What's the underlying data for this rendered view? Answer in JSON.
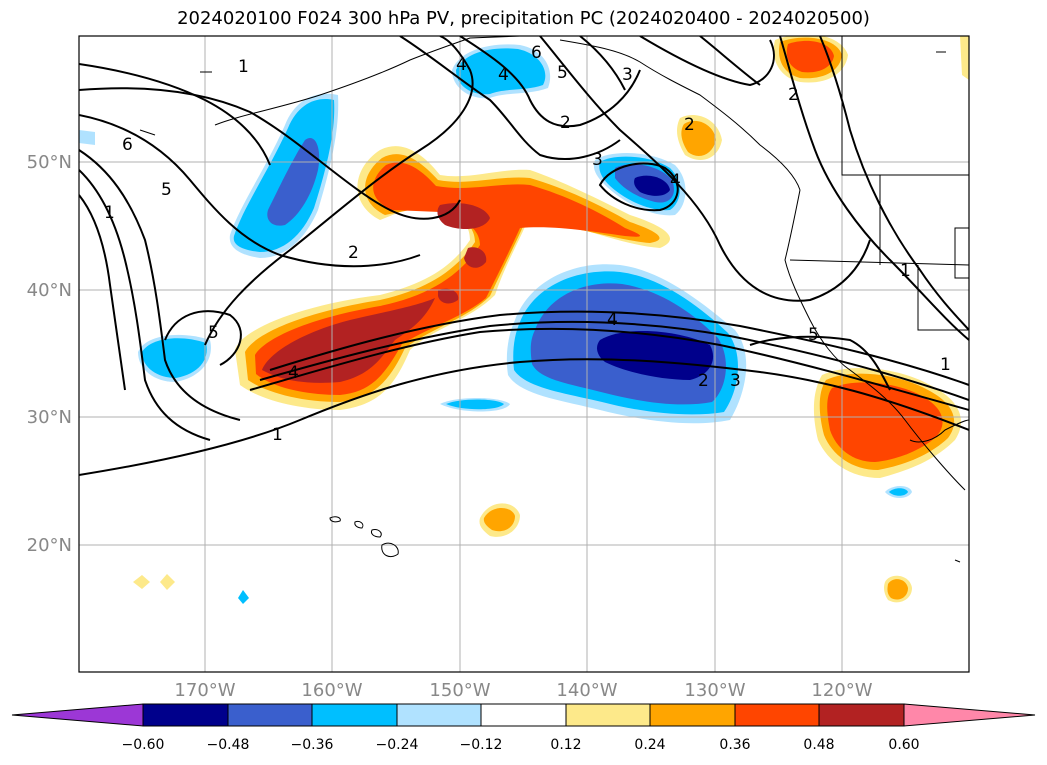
{
  "title": "2024020100 F024 300 hPa PV, precipitation PC (2024020400 - 2024020500)",
  "lat_labels": [
    "50°N",
    "40°N",
    "30°N",
    "20°N"
  ],
  "lon_labels": [
    "170°W",
    "160°W",
    "150°W",
    "140°W",
    "130°W",
    "120°W"
  ],
  "colorbar": {
    "ticks": [
      "−0.60",
      "−0.48",
      "−0.36",
      "−0.24",
      "−0.12",
      "0.12",
      "0.24",
      "0.36",
      "0.48",
      "0.60"
    ],
    "colors": [
      "#9c37d6",
      "#00008b",
      "#3a5fcd",
      "#00bfff",
      "#b0e2ff",
      "#ffffff",
      "#fde98a",
      "#ffa500",
      "#ff4500",
      "#b22222",
      "#ff87a9"
    ]
  },
  "contour_labels": [
    "1",
    "6",
    "5",
    "4",
    "3",
    "2",
    "5",
    "4",
    "1",
    "2",
    "1",
    "2",
    "3",
    "4",
    "4",
    "1",
    "2",
    "6",
    "4",
    "5",
    "5",
    "3",
    "2",
    "1"
  ],
  "colors": {
    "dark_blue": "#00008b",
    "mid_blue": "#3a5fcd",
    "sky_blue": "#00bfff",
    "light_blue": "#b0e2ff",
    "light_yellow": "#fde98a",
    "orange": "#ffa500",
    "red_orange": "#ff4500",
    "dark_red": "#b22222",
    "pink": "#ff87a9",
    "purple": "#9c37d6",
    "grid": "#b0b0b0"
  }
}
